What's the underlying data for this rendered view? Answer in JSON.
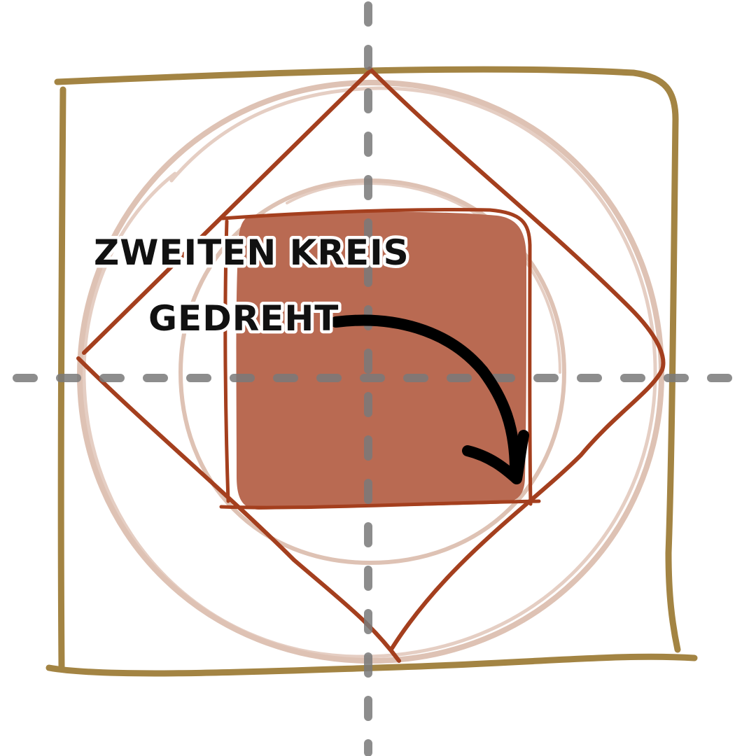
{
  "annotation": {
    "line1": "ZWEITEN KREIS",
    "line2": "GEDREHT"
  },
  "colors": {
    "outer_square": "#a38443",
    "diamond": "#a43f1e",
    "inner_square_stroke": "#a43f1e",
    "inner_square_fill": "#b96a52",
    "circles": "#dec2b4",
    "guides": "#8a8a8a",
    "arrow": "#000000"
  }
}
